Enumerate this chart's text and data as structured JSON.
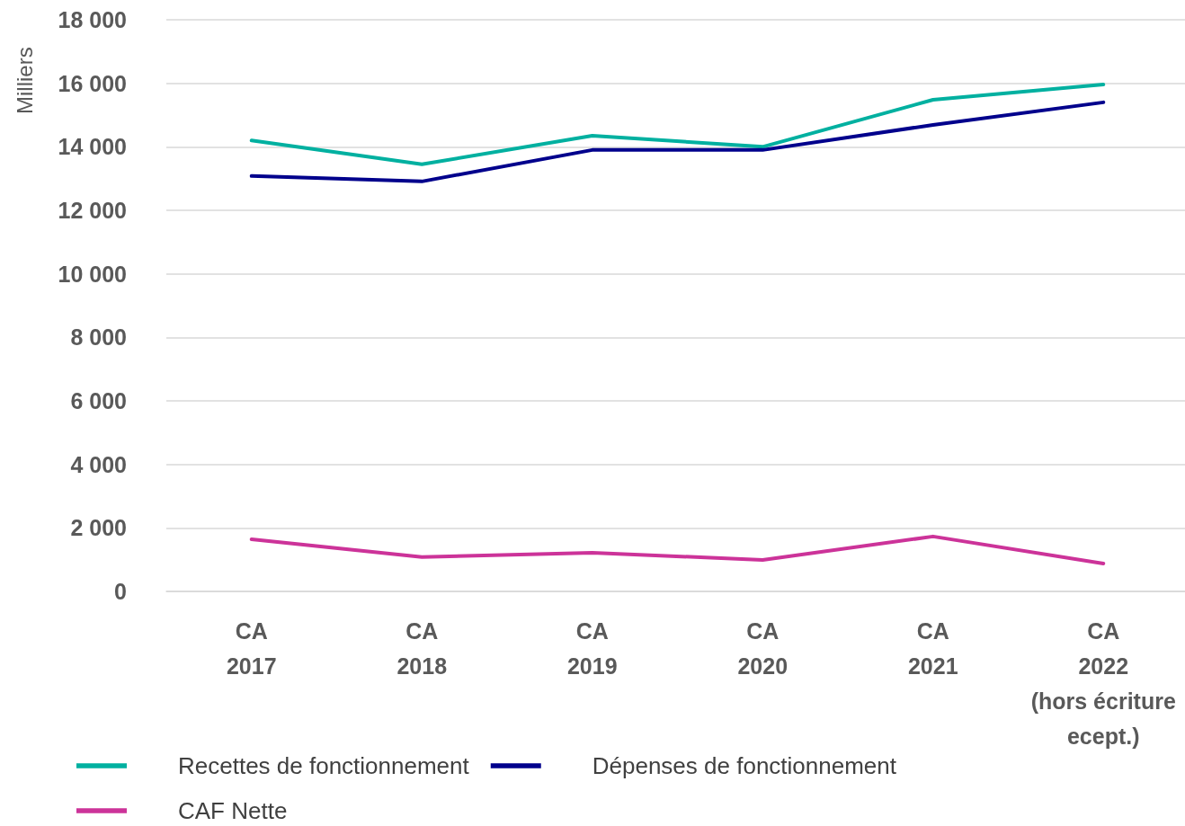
{
  "chart_data": {
    "type": "line",
    "ylabel": "Milliers",
    "categories": [
      "CA\n2017",
      "CA\n2018",
      "CA\n2019",
      "CA\n2020",
      "CA\n2021",
      "CA\n2022\n(hors écriture\necept.)"
    ],
    "series": [
      {
        "name": "Recettes de fonctionnement",
        "color": "#00b0a0",
        "values": [
          14200,
          13450,
          14350,
          14000,
          15480,
          15960
        ]
      },
      {
        "name": "Dépenses de fonctionnement",
        "color": "#00008c",
        "values": [
          13080,
          12910,
          13900,
          13900,
          14690,
          15400
        ]
      },
      {
        "name": "CAF Nette",
        "color": "#cc3399",
        "values": [
          1640,
          1080,
          1220,
          990,
          1730,
          880
        ]
      }
    ],
    "ylim": [
      0,
      18000
    ],
    "yticks": [
      {
        "value": 0,
        "label": "0"
      },
      {
        "value": 2000,
        "label": "2 000"
      },
      {
        "value": 4000,
        "label": "4 000"
      },
      {
        "value": 6000,
        "label": "6 000"
      },
      {
        "value": 8000,
        "label": "8 000"
      },
      {
        "value": 10000,
        "label": "10 000"
      },
      {
        "value": 12000,
        "label": "12 000"
      },
      {
        "value": 14000,
        "label": "14 000"
      },
      {
        "value": 16000,
        "label": "16 000"
      },
      {
        "value": 18000,
        "label": "18 000"
      }
    ],
    "grid": "y",
    "legend": "bottom left",
    "marker": "none",
    "line_style": "solid"
  }
}
